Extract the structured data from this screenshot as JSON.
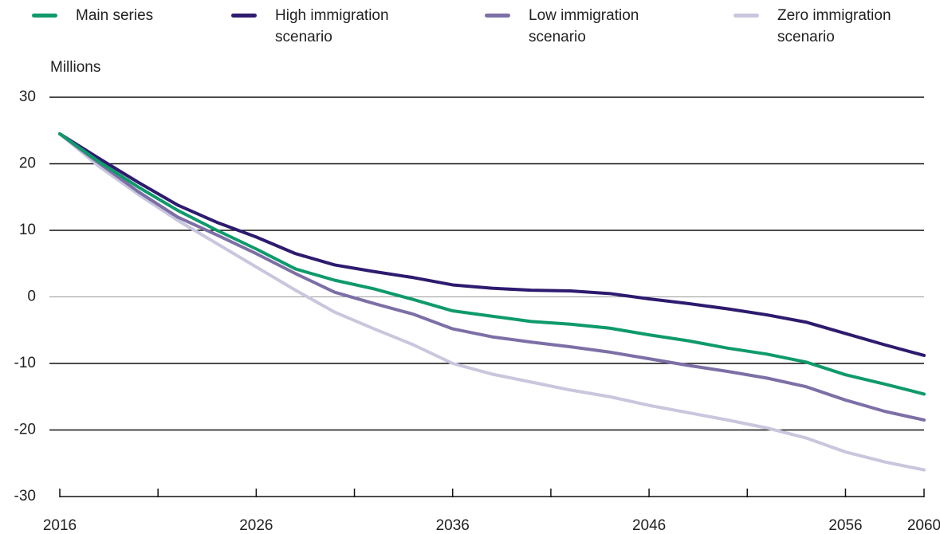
{
  "chart_data": {
    "type": "line",
    "y_label": "Millions",
    "x": [
      2016,
      2018,
      2020,
      2022,
      2024,
      2026,
      2028,
      2030,
      2032,
      2034,
      2036,
      2038,
      2040,
      2042,
      2044,
      2046,
      2048,
      2050,
      2052,
      2054,
      2056,
      2058,
      2060
    ],
    "series": [
      {
        "name": "Main series",
        "color": "#0f9a6b",
        "values": [
          24.5,
          20.3,
          16.5,
          13.0,
          10.0,
          7.2,
          4.2,
          2.5,
          1.2,
          -0.4,
          -2.1,
          -2.9,
          -3.7,
          -4.1,
          -4.7,
          -5.7,
          -6.6,
          -7.7,
          -8.6,
          -9.8,
          -11.7,
          -13.1,
          -14.6
        ]
      },
      {
        "name": "High immigration scenario",
        "color": "#2e1a6e",
        "values": [
          24.5,
          20.8,
          17.2,
          13.8,
          11.2,
          9.0,
          6.5,
          4.8,
          3.8,
          2.9,
          1.8,
          1.3,
          1.0,
          0.9,
          0.5,
          -0.3,
          -1.0,
          -1.8,
          -2.7,
          -3.8,
          -5.5,
          -7.2,
          -8.8
        ]
      },
      {
        "name": "Low immigration scenario",
        "color": "#7d6fa6",
        "values": [
          24.5,
          20.1,
          15.8,
          12.0,
          9.3,
          6.5,
          3.5,
          0.7,
          -1.0,
          -2.6,
          -4.8,
          -6.0,
          -6.8,
          -7.5,
          -8.3,
          -9.3,
          -10.3,
          -11.2,
          -12.2,
          -13.5,
          -15.5,
          -17.2,
          -18.5
        ]
      },
      {
        "name": "Zero immigration scenario",
        "color": "#c9c6dd",
        "values": [
          24.5,
          19.6,
          15.4,
          11.5,
          8.0,
          4.5,
          1.0,
          -2.3,
          -4.8,
          -7.2,
          -10.0,
          -11.6,
          -12.8,
          -14.0,
          -15.0,
          -16.3,
          -17.4,
          -18.5,
          -19.7,
          -21.2,
          -23.3,
          -24.8,
          -26.0
        ]
      }
    ],
    "xlim": [
      2016,
      2060
    ],
    "xticks": [
      2016,
      2026,
      2036,
      2046,
      2056,
      2060
    ],
    "xminorticks": [
      2021,
      2031,
      2041,
      2051
    ],
    "ylim": [
      -30,
      30
    ],
    "yticks": [
      -30,
      -20,
      -10,
      0,
      10,
      20,
      30
    ],
    "grid": true
  }
}
